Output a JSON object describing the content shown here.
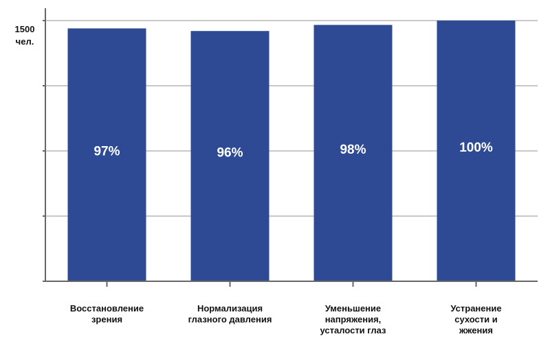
{
  "chart_data": {
    "type": "bar",
    "categories": [
      "Восстановление\nзрения",
      "Нормализация\nглазного давления",
      "Уменьшение\nнапряжения,\nусталости глаз",
      "Устранение\nсухости и\nжжения"
    ],
    "values": [
      1455,
      1440,
      1475,
      1500
    ],
    "data_labels": [
      "97%",
      "96%",
      "98%",
      "100%"
    ],
    "y_axis_label": "1500\nчел.",
    "ylim": [
      0,
      1500
    ],
    "grid": true,
    "bar_color": "#2e4a94",
    "grid_color": "#c8c8c8",
    "axis_color": "#666666",
    "label_color": "#ffffff"
  }
}
